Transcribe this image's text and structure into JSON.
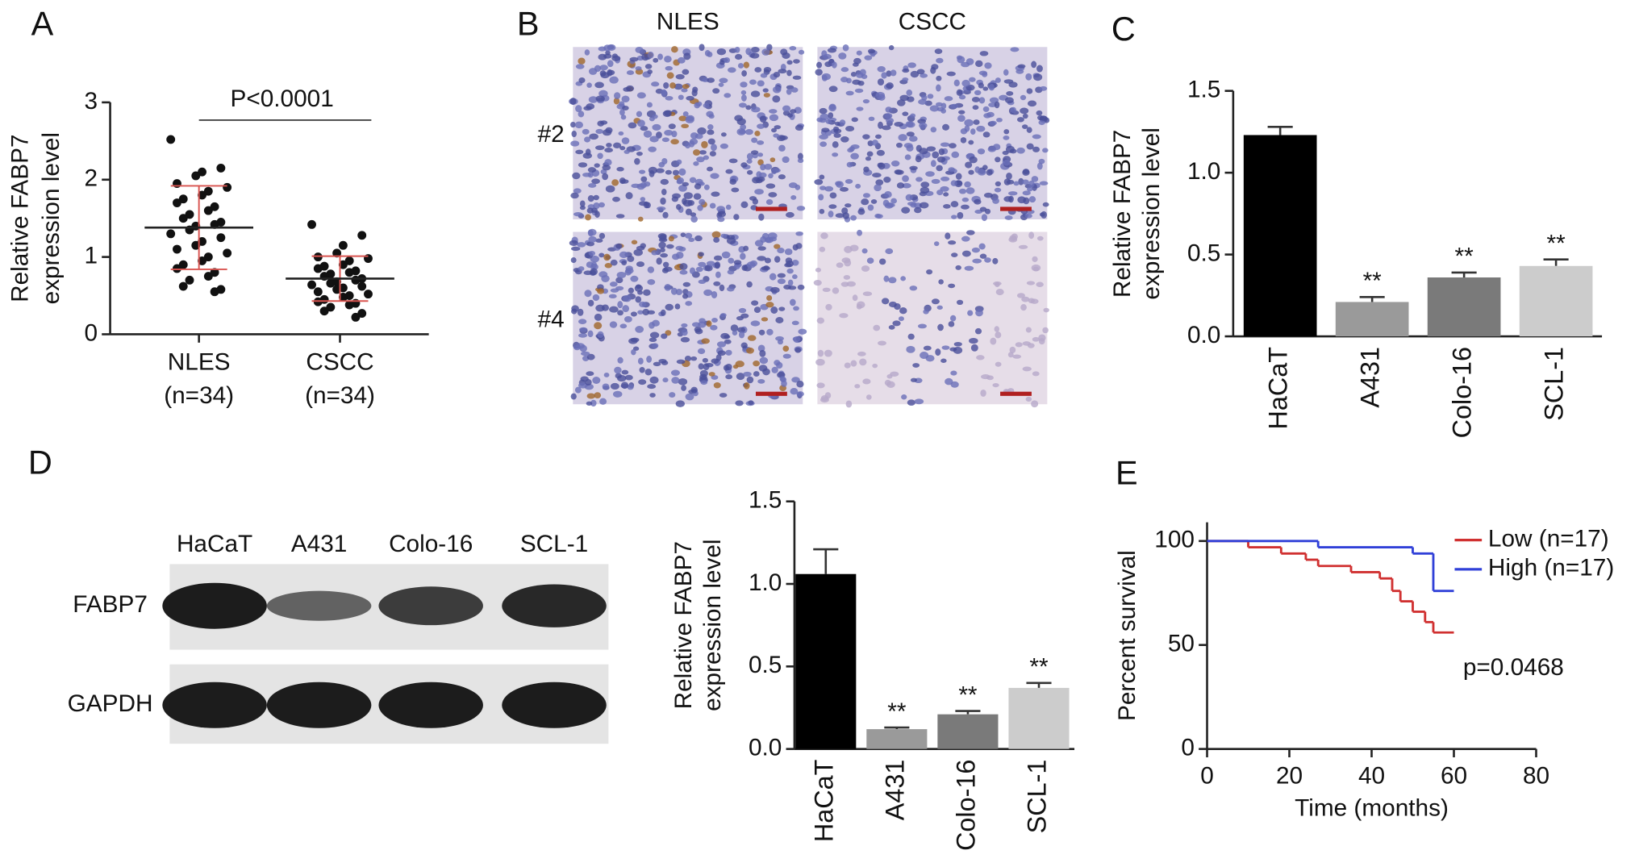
{
  "chart_data": [
    {
      "panel": "A",
      "type": "dot",
      "ylabel": [
        "Relative FABP7",
        "expression level"
      ],
      "categories": [
        "NLES",
        "CSCC"
      ],
      "category_notes": [
        "(n=34)",
        "(n=34)"
      ],
      "values": [
        [
          2.52,
          2.15,
          2.1,
          2.05,
          1.95,
          1.9,
          1.85,
          1.8,
          1.75,
          1.7,
          1.65,
          1.6,
          1.55,
          1.5,
          1.45,
          1.42,
          1.4,
          1.35,
          1.3,
          1.25,
          1.2,
          1.15,
          1.1,
          1.05,
          1.0,
          0.95,
          0.9,
          0.85,
          0.8,
          0.75,
          0.7,
          0.62,
          0.58,
          0.55
        ],
        [
          1.42,
          1.28,
          1.15,
          1.05,
          1.0,
          0.98,
          0.95,
          0.9,
          0.88,
          0.85,
          0.82,
          0.8,
          0.78,
          0.75,
          0.72,
          0.7,
          0.68,
          0.66,
          0.64,
          0.62,
          0.6,
          0.58,
          0.55,
          0.52,
          0.5,
          0.48,
          0.45,
          0.42,
          0.4,
          0.38,
          0.35,
          0.3,
          0.27,
          0.22
        ]
      ],
      "mean": [
        1.38,
        0.72
      ],
      "sd": [
        0.54,
        0.29
      ],
      "mean_color": "#222222",
      "sd_color": "#d9534f",
      "annotation": "P<0.0001",
      "ylim": [
        0,
        3
      ],
      "yticks": [
        0,
        1,
        2,
        3
      ]
    },
    {
      "panel": "B",
      "type": "image",
      "columns": [
        "NLES",
        "CSCC"
      ],
      "rows": [
        "#2",
        "#4"
      ]
    },
    {
      "panel": "C",
      "type": "bar",
      "ylabel": [
        "Relative FABP7",
        "expression level"
      ],
      "categories": [
        "HaCaT",
        "A431",
        "Colo-16",
        "SCL-1"
      ],
      "values": [
        1.23,
        0.21,
        0.36,
        0.43
      ],
      "errors": [
        0.05,
        0.03,
        0.03,
        0.04
      ],
      "colors": [
        "#000000",
        "#9a9a9a",
        "#7a7a7a",
        "#cccccc"
      ],
      "significance": [
        null,
        "**",
        "**",
        "**"
      ],
      "ylim": [
        0,
        1.5
      ],
      "yticks": [
        {
          "value": 0,
          "label": "0.0"
        },
        0.5,
        {
          "value": 1,
          "label": "1.0"
        },
        1.5
      ]
    },
    {
      "panel": "D",
      "type": "blot",
      "lanes": [
        "HaCaT",
        "A431",
        "Colo-16",
        "SCL-1"
      ],
      "rows": [
        "FABP7",
        "GAPDH"
      ]
    },
    {
      "type": "bar",
      "ylabel": [
        "Relative FABP7",
        "expression level"
      ],
      "categories": [
        "HaCaT",
        "A431",
        "Colo-16",
        "SCL-1"
      ],
      "values": [
        1.06,
        0.12,
        0.21,
        0.37
      ],
      "errors": [
        0.15,
        0.01,
        0.02,
        0.03
      ],
      "colors": [
        "#000000",
        "#9a9a9a",
        "#7a7a7a",
        "#cccccc"
      ],
      "significance": [
        null,
        "**",
        "**",
        "**"
      ],
      "ylim": [
        0,
        1.5
      ],
      "yticks": [
        {
          "value": 0,
          "label": "0.0"
        },
        0.5,
        {
          "value": 1,
          "label": "1.0"
        },
        1.5
      ]
    },
    {
      "panel": "E",
      "type": "line",
      "step": true,
      "xlabel": "Time (months)",
      "ylabel": "Percent survival",
      "series": [
        {
          "name": "Low (n=17)",
          "color": "#d03030",
          "x": [
            0,
            10,
            18,
            24,
            27,
            35,
            42,
            45,
            47,
            50,
            53,
            55,
            60
          ],
          "values": [
            100,
            97,
            94,
            91,
            88,
            85,
            82,
            76,
            71,
            66,
            61,
            56,
            56
          ]
        },
        {
          "name": "High (n=17)",
          "color": "#3040d8",
          "x": [
            0,
            27,
            50,
            55,
            60
          ],
          "values": [
            100,
            97,
            94,
            76,
            76
          ]
        }
      ],
      "xlim": [
        0,
        80
      ],
      "xticks": [
        0,
        20,
        40,
        60,
        80
      ],
      "ylim": [
        0,
        109
      ],
      "yticks": [
        0,
        50,
        100
      ],
      "legend": "upper right",
      "annotation": "p=0.0468"
    }
  ]
}
